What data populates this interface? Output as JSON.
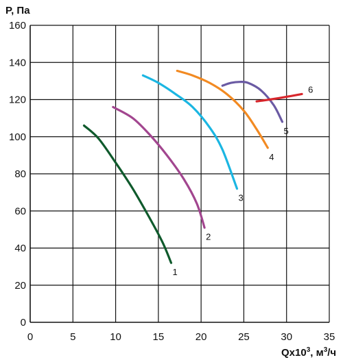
{
  "chart_data": {
    "type": "line",
    "title": "",
    "ylabel": "P, Па",
    "xlabel_base": "Qx10",
    "xlabel_sup": "3",
    "xlabel_unit_pre": ", м",
    "xlabel_unit_sup": "3",
    "xlabel_unit_post": "/ч",
    "xlim": [
      0,
      35
    ],
    "ylim": [
      0,
      160
    ],
    "xticks": [
      "0",
      "5",
      "10",
      "15",
      "20",
      "25",
      "30",
      "35"
    ],
    "yticks": [
      "0",
      "20",
      "40",
      "60",
      "80",
      "100",
      "120",
      "140",
      "160"
    ],
    "grid": true,
    "series": [
      {
        "name": "1",
        "color": "#0f5a2c",
        "points": [
          [
            6.3,
            106
          ],
          [
            8.0,
            99
          ],
          [
            10.0,
            86
          ],
          [
            12.0,
            72
          ],
          [
            14.0,
            56
          ],
          [
            15.5,
            43
          ],
          [
            16.5,
            32
          ]
        ]
      },
      {
        "name": "2",
        "color": "#a2468f",
        "points": [
          [
            9.7,
            116
          ],
          [
            12.0,
            110
          ],
          [
            14.0,
            101
          ],
          [
            16.0,
            90
          ],
          [
            18.0,
            77
          ],
          [
            19.5,
            64
          ],
          [
            20.4,
            51
          ]
        ]
      },
      {
        "name": "3",
        "color": "#1bb6e2",
        "points": [
          [
            13.2,
            133
          ],
          [
            15.0,
            129
          ],
          [
            17.0,
            123
          ],
          [
            19.0,
            116
          ],
          [
            21.0,
            105
          ],
          [
            22.5,
            93
          ],
          [
            24.2,
            72
          ]
        ]
      },
      {
        "name": "4",
        "color": "#f28a22",
        "points": [
          [
            17.2,
            135.5
          ],
          [
            19.0,
            133
          ],
          [
            21.0,
            129
          ],
          [
            23.0,
            123
          ],
          [
            25.0,
            114
          ],
          [
            26.5,
            104
          ],
          [
            27.8,
            94
          ]
        ]
      },
      {
        "name": "5",
        "color": "#6a5aa3",
        "points": [
          [
            22.5,
            127.5
          ],
          [
            23.5,
            129
          ],
          [
            24.5,
            129.5
          ],
          [
            25.5,
            129
          ],
          [
            27.0,
            125
          ],
          [
            28.5,
            117
          ],
          [
            29.5,
            108
          ]
        ]
      },
      {
        "name": "6",
        "color": "#d8262c",
        "points": [
          [
            26.5,
            119
          ],
          [
            28.0,
            120
          ],
          [
            30.0,
            121.5
          ],
          [
            31.8,
            123
          ]
        ]
      }
    ]
  }
}
